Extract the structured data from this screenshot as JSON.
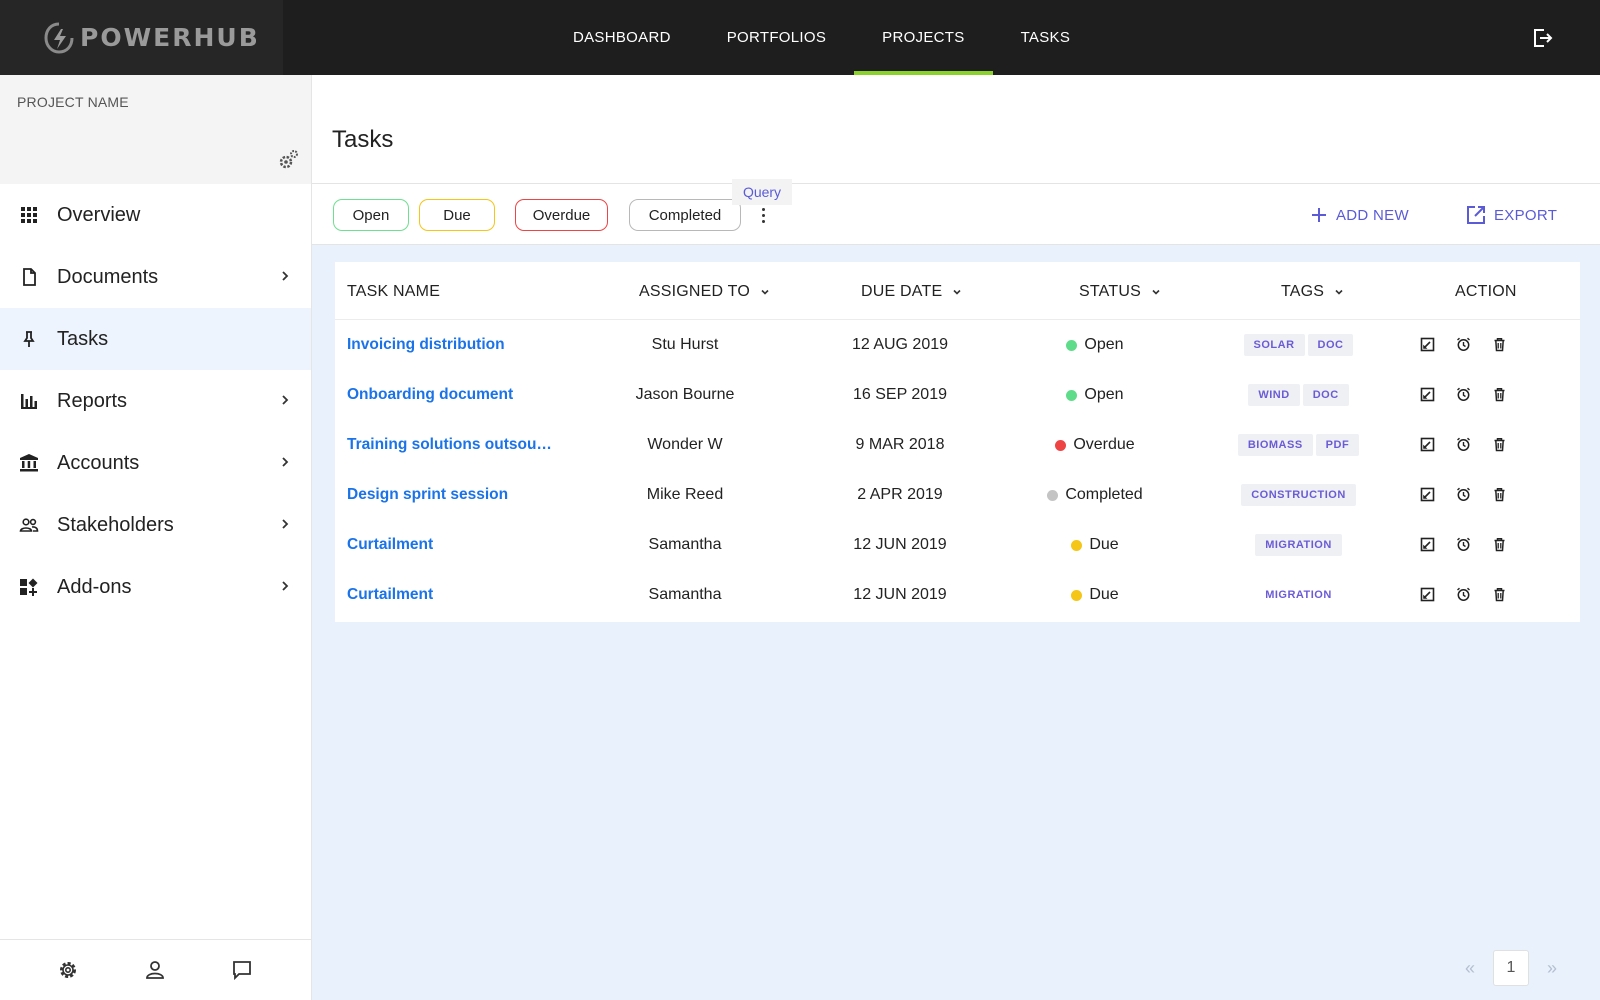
{
  "brand": {
    "name": "POWERHUB",
    "accent": "#8cd22c",
    "link_color": "#1a73e8",
    "action_color": "#5b5bd6"
  },
  "nav": {
    "items": [
      {
        "label": "DASHBOARD"
      },
      {
        "label": "PORTFOLIOS"
      },
      {
        "label": "PROJECTS",
        "active": true
      },
      {
        "label": "TASKS"
      }
    ],
    "logout_icon": "logout-icon"
  },
  "sidebar": {
    "project_label": "PROJECT NAME",
    "settings_icon": "gears-icon",
    "items": [
      {
        "label": "Overview",
        "icon": "grid-icon",
        "has_children": false
      },
      {
        "label": "Documents",
        "icon": "document-icon",
        "has_children": true
      },
      {
        "label": "Tasks",
        "icon": "pin-icon",
        "has_children": false,
        "active": true
      },
      {
        "label": "Reports",
        "icon": "bar-chart-icon",
        "has_children": true
      },
      {
        "label": "Accounts",
        "icon": "bank-icon",
        "has_children": true
      },
      {
        "label": "Stakeholders",
        "icon": "people-icon",
        "has_children": true
      },
      {
        "label": "Add-ons",
        "icon": "add-ons-icon",
        "has_children": true
      }
    ],
    "bottom_icons": [
      "settings-icon",
      "user-icon",
      "chat-icon"
    ]
  },
  "page": {
    "title": "Tasks"
  },
  "filters": {
    "chips": [
      {
        "label": "Open",
        "color": "#6ee08f"
      },
      {
        "label": "Due",
        "color": "#f5c518"
      },
      {
        "label": "Overdue",
        "color": "#ef4444"
      },
      {
        "label": "Completed",
        "color": "#b8b8b8"
      }
    ],
    "query_tooltip": "Query",
    "add_new_label": "ADD NEW",
    "export_label": "EXPORT"
  },
  "table": {
    "headers": {
      "task_name": "TASK NAME",
      "assigned_to": "ASSIGNED TO",
      "due_date": "DUE DATE",
      "status": "STATUS",
      "tags": "TAGS",
      "action": "ACTION"
    },
    "rows": [
      {
        "name": "Invoicing distribution",
        "assigned": "Stu Hurst",
        "due": "12 AUG 2019",
        "status": "Open",
        "status_color": "#5fdc8a",
        "tags": [
          "SOLAR",
          "DOC"
        ]
      },
      {
        "name": "Onboarding document",
        "assigned": "Jason Bourne",
        "due": "16 SEP 2019",
        "status": "Open",
        "status_color": "#5fdc8a",
        "tags": [
          "WIND",
          "DOC"
        ]
      },
      {
        "name": "Training solutions outsou…",
        "assigned": "Wonder W",
        "due": "9 MAR 2018",
        "status": "Overdue",
        "status_color": "#ef4444",
        "tags": [
          "BIOMASS",
          "PDF"
        ]
      },
      {
        "name": "Design sprint session",
        "assigned": "Mike Reed",
        "due": "2 APR 2019",
        "status": "Completed",
        "status_color": "#c4c4c4",
        "tags": [
          "CONSTRUCTION"
        ]
      },
      {
        "name": "Curtailment",
        "assigned": "Samantha",
        "due": "12 JUN 2019",
        "status": "Due",
        "status_color": "#f5c518",
        "tags": [
          "MIGRATION"
        ]
      },
      {
        "name": "Curtailment",
        "assigned": "Samantha",
        "due": "12 JUN 2019",
        "status": "Due",
        "status_color": "#f5c518",
        "tags": [
          "MIGRATION"
        ],
        "tags_plain": true
      }
    ],
    "row_actions": [
      "edit-icon",
      "alarm-icon",
      "delete-icon"
    ]
  },
  "pagination": {
    "prev": "«",
    "page": "1",
    "next": "»"
  }
}
